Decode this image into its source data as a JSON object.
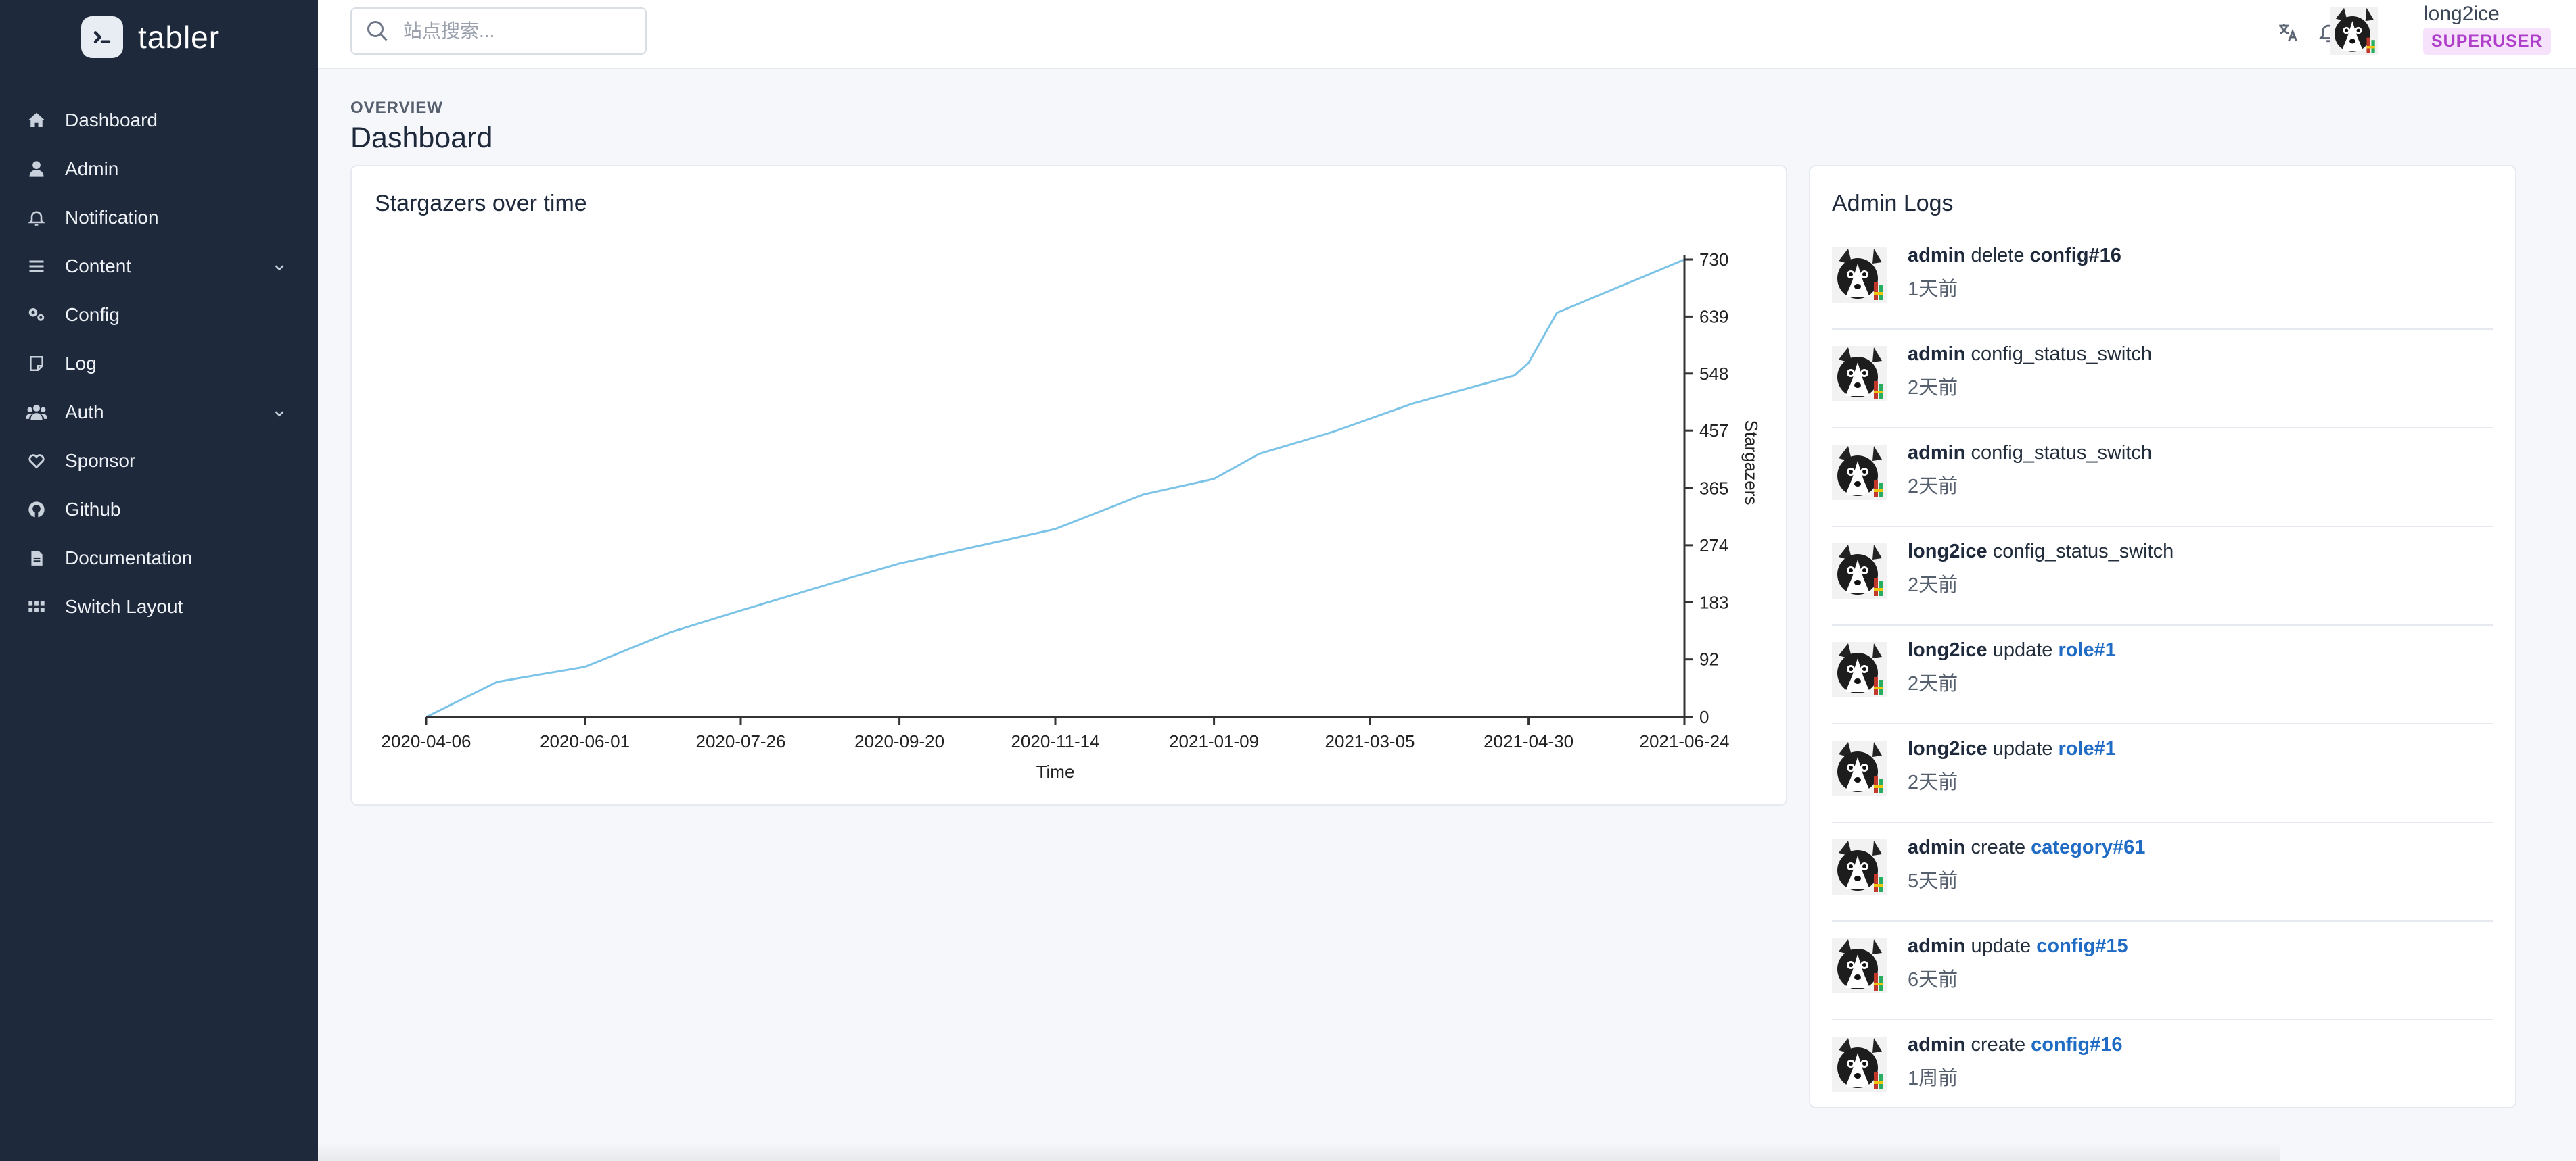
{
  "brand": {
    "name": "tabler"
  },
  "sidebar": {
    "items": [
      {
        "label": "Dashboard",
        "icon": "home-icon"
      },
      {
        "label": "Admin",
        "icon": "user-icon"
      },
      {
        "label": "Notification",
        "icon": "bell-icon"
      },
      {
        "label": "Content",
        "icon": "menu-icon",
        "has_submenu": true
      },
      {
        "label": "Config",
        "icon": "settings-icon"
      },
      {
        "label": "Log",
        "icon": "note-icon"
      },
      {
        "label": "Auth",
        "icon": "users-icon",
        "has_submenu": true
      },
      {
        "label": "Sponsor",
        "icon": "heart-icon"
      },
      {
        "label": "Github",
        "icon": "github-icon"
      },
      {
        "label": "Documentation",
        "icon": "file-icon"
      },
      {
        "label": "Switch Layout",
        "icon": "grid-icon"
      }
    ]
  },
  "header": {
    "search_placeholder": "站点搜索...",
    "user": {
      "name": "long2ice",
      "role": "SUPERUSER"
    }
  },
  "page": {
    "pretitle": "OVERVIEW",
    "title": "Dashboard"
  },
  "chart_card": {
    "title": "Stargazers over time"
  },
  "chart_data": {
    "type": "line",
    "title": "Stargazers over time",
    "xlabel": "Time",
    "ylabel": "Stargazers",
    "x_ticks": [
      "2020-04-06",
      "2020-06-01",
      "2020-07-26",
      "2020-09-20",
      "2020-11-14",
      "2021-01-09",
      "2021-03-05",
      "2021-04-30",
      "2021-06-24"
    ],
    "y_ticks": [
      0,
      92,
      183,
      274,
      365,
      457,
      548,
      639,
      730
    ],
    "ylim": [
      0,
      730
    ],
    "y_axis_side": "right",
    "line_color": "#7cc3e8",
    "series": [
      {
        "x": [
          "2020-04-06",
          "2020-05-01",
          "2020-06-01",
          "2020-07-01",
          "2020-07-26",
          "2020-09-01",
          "2020-09-20",
          "2020-10-20",
          "2020-11-14",
          "2020-12-15",
          "2021-01-09",
          "2021-01-25",
          "2021-02-20",
          "2021-03-20",
          "2021-04-25",
          "2021-04-30",
          "2021-05-10",
          "2021-06-24"
        ],
        "values": [
          0,
          56,
          80,
          135,
          170,
          220,
          245,
          275,
          300,
          355,
          380,
          420,
          455,
          500,
          545,
          565,
          645,
          730
        ]
      }
    ]
  },
  "logs": {
    "title": "Admin Logs",
    "items": [
      {
        "actor": "admin",
        "action": "delete",
        "target": "config#16",
        "target_link": false,
        "time": "1天前"
      },
      {
        "actor": "admin",
        "action": "config_status_switch",
        "target": "",
        "target_link": false,
        "time": "2天前"
      },
      {
        "actor": "admin",
        "action": "config_status_switch",
        "target": "",
        "target_link": false,
        "time": "2天前"
      },
      {
        "actor": "long2ice",
        "action": "config_status_switch",
        "target": "",
        "target_link": false,
        "time": "2天前"
      },
      {
        "actor": "long2ice",
        "action": "update",
        "target": "role#1",
        "target_link": true,
        "time": "2天前"
      },
      {
        "actor": "long2ice",
        "action": "update",
        "target": "role#1",
        "target_link": true,
        "time": "2天前"
      },
      {
        "actor": "admin",
        "action": "create",
        "target": "category#61",
        "target_link": true,
        "time": "5天前"
      },
      {
        "actor": "admin",
        "action": "update",
        "target": "config#15",
        "target_link": true,
        "time": "6天前"
      },
      {
        "actor": "admin",
        "action": "create",
        "target": "config#16",
        "target_link": true,
        "time": "1周前"
      }
    ]
  }
}
